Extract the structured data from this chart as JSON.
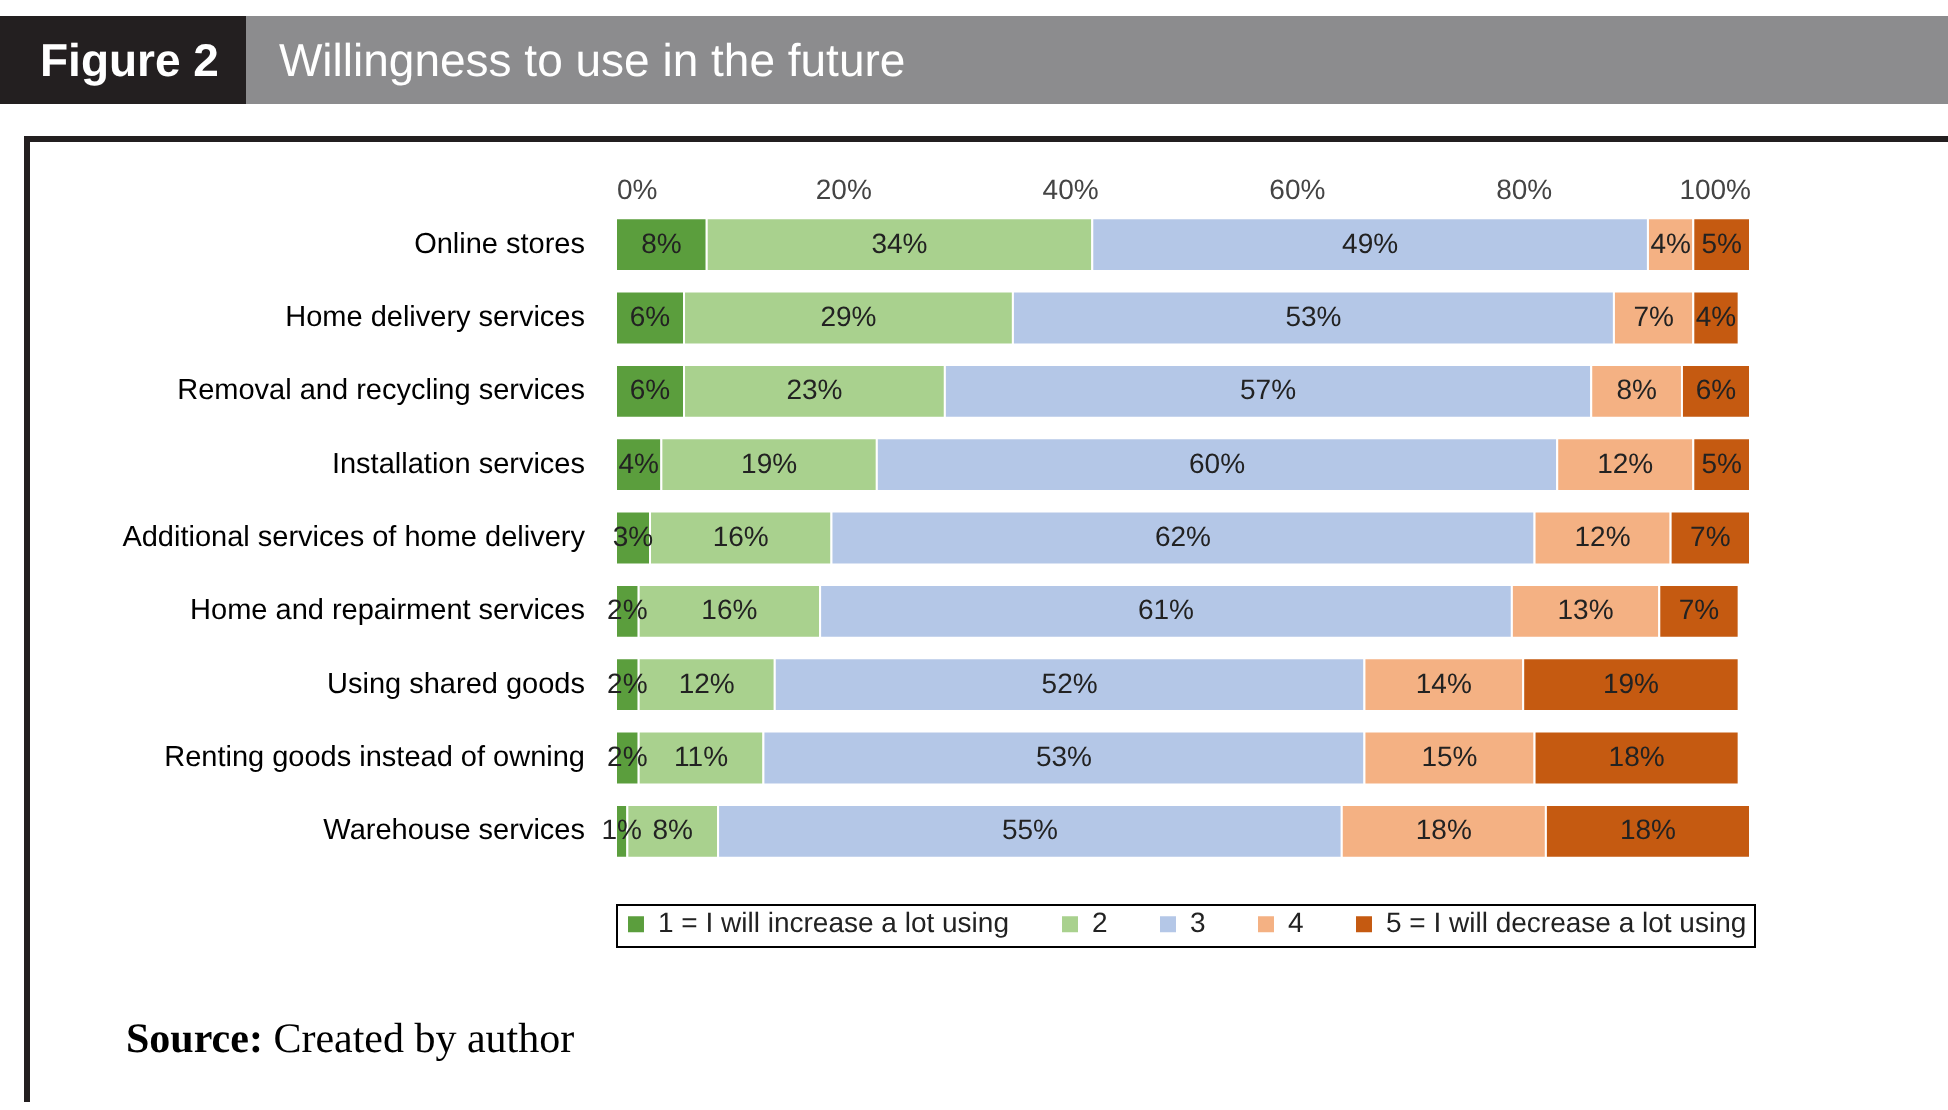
{
  "chart_data": {
    "type": "bar",
    "orientation": "horizontal",
    "stacked": true,
    "title": "Figure 2",
    "subtitle": "Willingness to use in the future",
    "categories": [
      "Online stores",
      "Home delivery services",
      "Removal and recycling services",
      "Installation services",
      "Additional services of home delivery",
      "Home and repairment services",
      "Using shared goods",
      "Renting goods instead of owning",
      "Warehouse services"
    ],
    "series": [
      {
        "name": "1 = I will increase a lot using",
        "color": "#5b9e3d",
        "values": [
          8,
          6,
          6,
          4,
          3,
          2,
          2,
          2,
          1
        ],
        "value_labels": [
          "8%",
          "6%",
          "6%",
          "4%",
          "3%",
          "2%",
          "2%",
          "2%",
          "1%"
        ]
      },
      {
        "name": "2",
        "color": "#a9d18e",
        "values": [
          34,
          29,
          23,
          19,
          16,
          16,
          12,
          11,
          8
        ],
        "value_labels": [
          "34%",
          "29%",
          "23%",
          "19%",
          "16%",
          "16%",
          "12%",
          "11%",
          "8%"
        ]
      },
      {
        "name": "3",
        "color": "#b4c7e7",
        "values": [
          49,
          53,
          57,
          60,
          62,
          61,
          52,
          53,
          55
        ],
        "value_labels": [
          "49%",
          "53%",
          "57%",
          "60%",
          "62%",
          "61%",
          "52%",
          "53%",
          "55%"
        ]
      },
      {
        "name": "4",
        "color": "#f4b183",
        "values": [
          4,
          7,
          8,
          12,
          12,
          13,
          14,
          15,
          18
        ],
        "value_labels": [
          "4%",
          "7%",
          "8%",
          "12%",
          "12%",
          "13%",
          "14%",
          "15%",
          "18%"
        ]
      },
      {
        "name": "5 = I will decrease a lot using",
        "color": "#c55a11",
        "values": [
          5,
          4,
          6,
          5,
          7,
          7,
          19,
          18,
          18
        ],
        "value_labels": [
          "5%",
          "4%",
          "6%",
          "5%",
          "7%",
          "7%",
          "19%",
          "18%",
          "18%"
        ]
      }
    ],
    "xlim": [
      0,
      100
    ],
    "xticks": [
      {
        "value": 0,
        "label": "0%"
      },
      {
        "value": 20,
        "label": "20%"
      },
      {
        "value": 40,
        "label": "40%"
      },
      {
        "value": 60,
        "label": "60%"
      },
      {
        "value": 80,
        "label": "80%"
      },
      {
        "value": 100,
        "label": "100%"
      }
    ],
    "grid": false,
    "legend": "bottom",
    "annotations": [
      "Source: Created by author"
    ]
  }
}
